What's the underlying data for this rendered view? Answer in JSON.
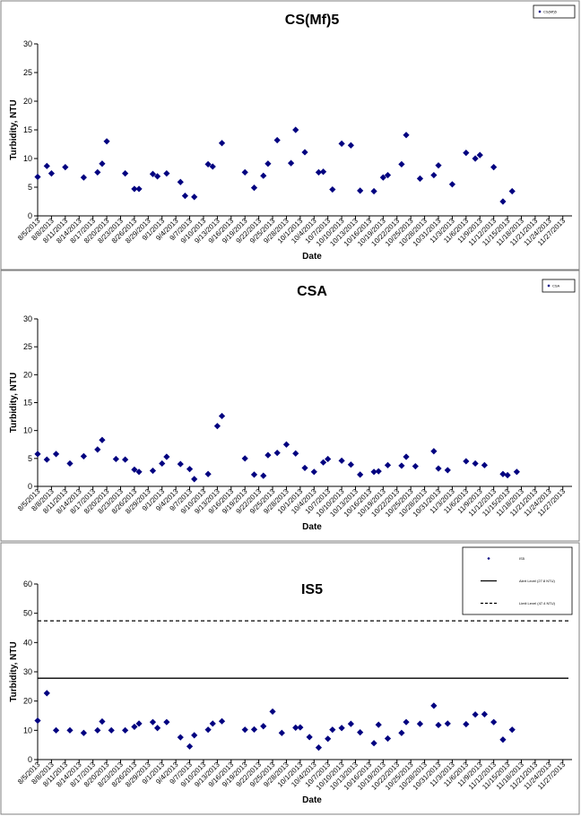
{
  "colors": {
    "marker": "#000080",
    "line": "#000000",
    "frame": "#7f7f7f"
  },
  "chart_data": [
    {
      "type": "scatter",
      "title": "CS(Mf)5",
      "xlabel": "Date",
      "ylabel": "Turbidity, NTU",
      "ylim": [
        0,
        30
      ],
      "yticks": [
        0,
        5,
        10,
        15,
        20,
        25,
        30
      ],
      "xlim": [
        "8/5/2013",
        "11/29/2013"
      ],
      "xticks": [
        "8/5/2013",
        "8/8/2013",
        "8/11/2013",
        "8/14/2013",
        "8/17/2013",
        "8/20/2013",
        "8/23/2013",
        "8/26/2013",
        "8/29/2013",
        "9/1/2013",
        "9/4/2013",
        "9/7/2013",
        "9/10/2013",
        "9/13/2013",
        "9/16/2013",
        "9/19/2013",
        "9/22/2013",
        "9/25/2013",
        "9/28/2013",
        "10/1/2013",
        "10/4/2013",
        "10/7/2013",
        "10/10/2013",
        "10/13/2013",
        "10/16/2013",
        "10/19/2013",
        "10/22/2013",
        "10/25/2013",
        "10/28/2013",
        "10/31/2013",
        "11/3/2013",
        "11/6/2013",
        "11/9/2013",
        "11/12/2013",
        "11/15/2013",
        "11/18/2013",
        "11/21/2013",
        "11/24/2013",
        "11/27/2013"
      ],
      "grid": false,
      "legend_position": "top-right",
      "legend_entries": [
        "CS(Mf)5"
      ],
      "series": [
        {
          "name": "CS(Mf)5",
          "points": [
            [
              "8/5/2013",
              6.8
            ],
            [
              "8/7/2013",
              8.7
            ],
            [
              "8/8/2013",
              7.4
            ],
            [
              "8/11/2013",
              8.5
            ],
            [
              "8/15/2013",
              6.7
            ],
            [
              "8/18/2013",
              7.6
            ],
            [
              "8/19/2013",
              9.1
            ],
            [
              "8/20/2013",
              13.0
            ],
            [
              "8/24/2013",
              7.4
            ],
            [
              "8/26/2013",
              4.7
            ],
            [
              "8/27/2013",
              4.7
            ],
            [
              "8/30/2013",
              7.3
            ],
            [
              "8/31/2013",
              6.9
            ],
            [
              "9/2/2013",
              7.4
            ],
            [
              "9/5/2013",
              5.9
            ],
            [
              "9/6/2013",
              3.5
            ],
            [
              "9/8/2013",
              3.3
            ],
            [
              "9/11/2013",
              9.0
            ],
            [
              "9/12/2013",
              8.6
            ],
            [
              "9/14/2013",
              12.7
            ],
            [
              "9/19/2013",
              7.6
            ],
            [
              "9/21/2013",
              4.9
            ],
            [
              "9/23/2013",
              7.0
            ],
            [
              "9/24/2013",
              9.1
            ],
            [
              "9/26/2013",
              13.2
            ],
            [
              "9/29/2013",
              9.2
            ],
            [
              "9/30/2013",
              15.0
            ],
            [
              "10/2/2013",
              11.1
            ],
            [
              "10/5/2013",
              7.6
            ],
            [
              "10/6/2013",
              7.7
            ],
            [
              "10/8/2013",
              4.6
            ],
            [
              "10/10/2013",
              12.6
            ],
            [
              "10/12/2013",
              12.3
            ],
            [
              "10/14/2013",
              4.4
            ],
            [
              "10/17/2013",
              4.3
            ],
            [
              "10/19/2013",
              6.7
            ],
            [
              "10/20/2013",
              7.1
            ],
            [
              "10/23/2013",
              9.0
            ],
            [
              "10/24/2013",
              14.1
            ],
            [
              "10/27/2013",
              6.5
            ],
            [
              "10/30/2013",
              7.1
            ],
            [
              "10/31/2013",
              8.8
            ],
            [
              "11/3/2013",
              5.5
            ],
            [
              "11/6/2013",
              11.0
            ],
            [
              "11/8/2013",
              10.0
            ],
            [
              "11/9/2013",
              10.6
            ],
            [
              "11/12/2013",
              8.5
            ],
            [
              "11/14/2013",
              2.5
            ],
            [
              "11/16/2013",
              4.3
            ]
          ]
        }
      ]
    },
    {
      "type": "scatter",
      "title": "CSA",
      "xlabel": "Date",
      "ylabel": "Turbidity, NTU",
      "ylim": [
        0,
        30
      ],
      "yticks": [
        0,
        5,
        10,
        15,
        20,
        25,
        30
      ],
      "xlim": [
        "8/5/2013",
        "11/29/2013"
      ],
      "xticks": [
        "8/5/2013",
        "8/8/2013",
        "8/11/2013",
        "8/14/2013",
        "8/17/2013",
        "8/20/2013",
        "8/23/2013",
        "8/26/2013",
        "8/29/2013",
        "9/1/2013",
        "9/4/2013",
        "9/7/2013",
        "9/10/2013",
        "9/13/2013",
        "9/16/2013",
        "9/19/2013",
        "9/22/2013",
        "9/25/2013",
        "9/28/2013",
        "10/1/2013",
        "10/4/2013",
        "10/7/2013",
        "10/10/2013",
        "10/13/2013",
        "10/16/2013",
        "10/19/2013",
        "10/22/2013",
        "10/25/2013",
        "10/28/2013",
        "10/31/2013",
        "11/3/2013",
        "11/6/2013",
        "11/9/2013",
        "11/12/2013",
        "11/15/2013",
        "11/18/2013",
        "11/21/2013",
        "11/24/2013",
        "11/27/2013"
      ],
      "grid": false,
      "legend_position": "top-right",
      "legend_entries": [
        "CSA"
      ],
      "series": [
        {
          "name": "CSA",
          "points": [
            [
              "8/5/2013",
              5.8
            ],
            [
              "8/7/2013",
              4.8
            ],
            [
              "8/9/2013",
              5.8
            ],
            [
              "8/12/2013",
              4.1
            ],
            [
              "8/15/2013",
              5.4
            ],
            [
              "8/18/2013",
              6.6
            ],
            [
              "8/19/2013",
              8.3
            ],
            [
              "8/22/2013",
              4.9
            ],
            [
              "8/24/2013",
              4.8
            ],
            [
              "8/26/2013",
              3.0
            ],
            [
              "8/27/2013",
              2.6
            ],
            [
              "8/30/2013",
              2.8
            ],
            [
              "9/1/2013",
              4.1
            ],
            [
              "9/2/2013",
              5.3
            ],
            [
              "9/5/2013",
              4.0
            ],
            [
              "9/7/2013",
              3.1
            ],
            [
              "9/8/2013",
              1.3
            ],
            [
              "9/11/2013",
              2.2
            ],
            [
              "9/13/2013",
              10.8
            ],
            [
              "9/14/2013",
              12.6
            ],
            [
              "9/19/2013",
              5.0
            ],
            [
              "9/21/2013",
              2.1
            ],
            [
              "9/23/2013",
              1.9
            ],
            [
              "9/24/2013",
              5.6
            ],
            [
              "9/26/2013",
              6.0
            ],
            [
              "9/28/2013",
              7.5
            ],
            [
              "9/30/2013",
              5.9
            ],
            [
              "10/2/2013",
              3.3
            ],
            [
              "10/4/2013",
              2.6
            ],
            [
              "10/6/2013",
              4.3
            ],
            [
              "10/7/2013",
              4.9
            ],
            [
              "10/10/2013",
              4.6
            ],
            [
              "10/12/2013",
              3.9
            ],
            [
              "10/14/2013",
              2.1
            ],
            [
              "10/17/2013",
              2.6
            ],
            [
              "10/18/2013",
              2.7
            ],
            [
              "10/20/2013",
              3.8
            ],
            [
              "10/23/2013",
              3.7
            ],
            [
              "10/24/2013",
              5.3
            ],
            [
              "10/26/2013",
              3.6
            ],
            [
              "10/30/2013",
              6.3
            ],
            [
              "10/31/2013",
              3.2
            ],
            [
              "11/2/2013",
              2.9
            ],
            [
              "11/6/2013",
              4.5
            ],
            [
              "11/8/2013",
              4.1
            ],
            [
              "11/10/2013",
              3.8
            ],
            [
              "11/14/2013",
              2.2
            ],
            [
              "11/15/2013",
              2.0
            ],
            [
              "11/17/2013",
              2.6
            ]
          ]
        }
      ]
    },
    {
      "type": "scatter",
      "title": "IS5",
      "xlabel": "Date",
      "ylabel": "Turbidity, NTU",
      "ylim": [
        0,
        60
      ],
      "yticks": [
        0,
        10,
        20,
        30,
        40,
        50,
        60
      ],
      "xlim": [
        "8/5/2013",
        "11/29/2013"
      ],
      "xticks": [
        "8/5/2013",
        "8/8/2013",
        "8/11/2013",
        "8/14/2013",
        "8/17/2013",
        "8/20/2013",
        "8/23/2013",
        "8/26/2013",
        "8/29/2013",
        "9/1/2013",
        "9/4/2013",
        "9/7/2013",
        "9/10/2013",
        "9/13/2013",
        "9/16/2013",
        "9/19/2013",
        "9/22/2013",
        "9/25/2013",
        "9/28/2013",
        "10/1/2013",
        "10/4/2013",
        "10/7/2013",
        "10/10/2013",
        "10/13/2013",
        "10/16/2013",
        "10/19/2013",
        "10/22/2013",
        "10/25/2013",
        "10/28/2013",
        "10/31/2013",
        "11/3/2013",
        "11/6/2013",
        "11/9/2013",
        "11/12/2013",
        "11/15/2013",
        "11/18/2013",
        "11/21/2013",
        "11/24/2013",
        "11/27/2013"
      ],
      "grid": false,
      "legend_position": "top-right",
      "legend_entries": [
        "IS5",
        "Alert Level (27.8 NTU)",
        "Limit Level (47.4 NTU)"
      ],
      "reference_lines": [
        {
          "label": "Alert Level (27.8 NTU)",
          "y": 27.8,
          "style": "solid"
        },
        {
          "label": "Limit Level (47.4 NTU)",
          "y": 47.4,
          "style": "dashed"
        }
      ],
      "series": [
        {
          "name": "IS5",
          "points": [
            [
              "8/5/2013",
              13.3
            ],
            [
              "8/7/2013",
              22.7
            ],
            [
              "8/9/2013",
              10.0
            ],
            [
              "8/12/2013",
              10.0
            ],
            [
              "8/15/2013",
              9.1
            ],
            [
              "8/18/2013",
              10.0
            ],
            [
              "8/19/2013",
              13.0
            ],
            [
              "8/21/2013",
              10.0
            ],
            [
              "8/24/2013",
              10.0
            ],
            [
              "8/26/2013",
              11.2
            ],
            [
              "8/27/2013",
              12.3
            ],
            [
              "8/30/2013",
              12.8
            ],
            [
              "8/31/2013",
              10.8
            ],
            [
              "9/2/2013",
              12.8
            ],
            [
              "9/5/2013",
              7.6
            ],
            [
              "9/7/2013",
              4.5
            ],
            [
              "9/8/2013",
              8.3
            ],
            [
              "9/11/2013",
              10.2
            ],
            [
              "9/12/2013",
              12.3
            ],
            [
              "9/14/2013",
              13.1
            ],
            [
              "9/19/2013",
              10.2
            ],
            [
              "9/21/2013",
              10.3
            ],
            [
              "9/23/2013",
              11.4
            ],
            [
              "9/25/2013",
              16.4
            ],
            [
              "9/27/2013",
              9.1
            ],
            [
              "9/30/2013",
              10.9
            ],
            [
              "10/1/2013",
              11.0
            ],
            [
              "10/3/2013",
              7.7
            ],
            [
              "10/5/2013",
              4.1
            ],
            [
              "10/7/2013",
              7.1
            ],
            [
              "10/8/2013",
              10.2
            ],
            [
              "10/10/2013",
              10.8
            ],
            [
              "10/12/2013",
              12.2
            ],
            [
              "10/14/2013",
              9.3
            ],
            [
              "10/17/2013",
              5.6
            ],
            [
              "10/18/2013",
              11.9
            ],
            [
              "10/20/2013",
              7.2
            ],
            [
              "10/23/2013",
              9.1
            ],
            [
              "10/24/2013",
              12.8
            ],
            [
              "10/27/2013",
              12.2
            ],
            [
              "10/30/2013",
              18.4
            ],
            [
              "10/31/2013",
              11.8
            ],
            [
              "11/2/2013",
              12.3
            ],
            [
              "11/6/2013",
              12.1
            ],
            [
              "11/8/2013",
              15.4
            ],
            [
              "11/10/2013",
              15.5
            ],
            [
              "11/12/2013",
              12.8
            ],
            [
              "11/14/2013",
              6.8
            ],
            [
              "11/16/2013",
              10.2
            ]
          ]
        }
      ]
    }
  ]
}
